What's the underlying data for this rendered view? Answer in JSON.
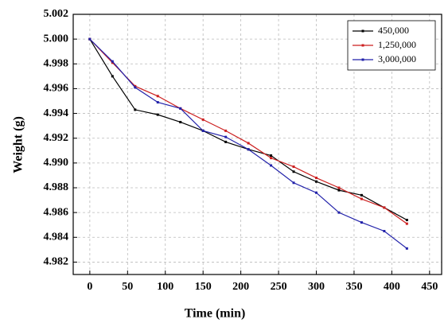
{
  "chart_data": {
    "type": "line",
    "x_label": "Time (min)",
    "y_label": "Weight (g)",
    "x": [
      0,
      30,
      60,
      90,
      120,
      150,
      180,
      210,
      240,
      270,
      300,
      330,
      360,
      390,
      420
    ],
    "series": [
      {
        "name": "450,000",
        "color": "#000000",
        "values": [
          5.0,
          4.997,
          4.9943,
          4.9939,
          4.9933,
          4.9926,
          4.9917,
          4.9911,
          4.9906,
          4.9893,
          4.9885,
          4.9878,
          4.9874,
          4.9864,
          4.9854
        ]
      },
      {
        "name": "1,250,000",
        "color": "#cc1f1f",
        "values": [
          5.0,
          4.9981,
          4.9962,
          4.9954,
          4.9944,
          4.9935,
          4.9926,
          4.9916,
          4.9904,
          4.9897,
          4.9888,
          4.988,
          4.9871,
          4.9864,
          4.9851
        ]
      },
      {
        "name": "3,000,000",
        "color": "#2222aa",
        "values": [
          5.0,
          4.9982,
          4.9961,
          4.9949,
          4.9944,
          4.9926,
          4.9921,
          4.9911,
          4.9898,
          4.9884,
          4.9876,
          4.986,
          4.9852,
          4.9845,
          4.9831
        ]
      }
    ],
    "xlim": [
      -22,
      466
    ],
    "xticks": [
      0,
      50,
      100,
      150,
      200,
      250,
      300,
      350,
      400,
      450
    ],
    "ylim": [
      4.981,
      5.002
    ],
    "yticks": [
      4.982,
      4.984,
      4.986,
      4.988,
      {
        "value": 4.99,
        "label": "4.990"
      },
      4.992,
      4.994,
      4.996,
      4.998,
      {
        "value": 5,
        "label": "5.000"
      },
      5.002
    ],
    "grid": true,
    "legend": "top-right"
  }
}
